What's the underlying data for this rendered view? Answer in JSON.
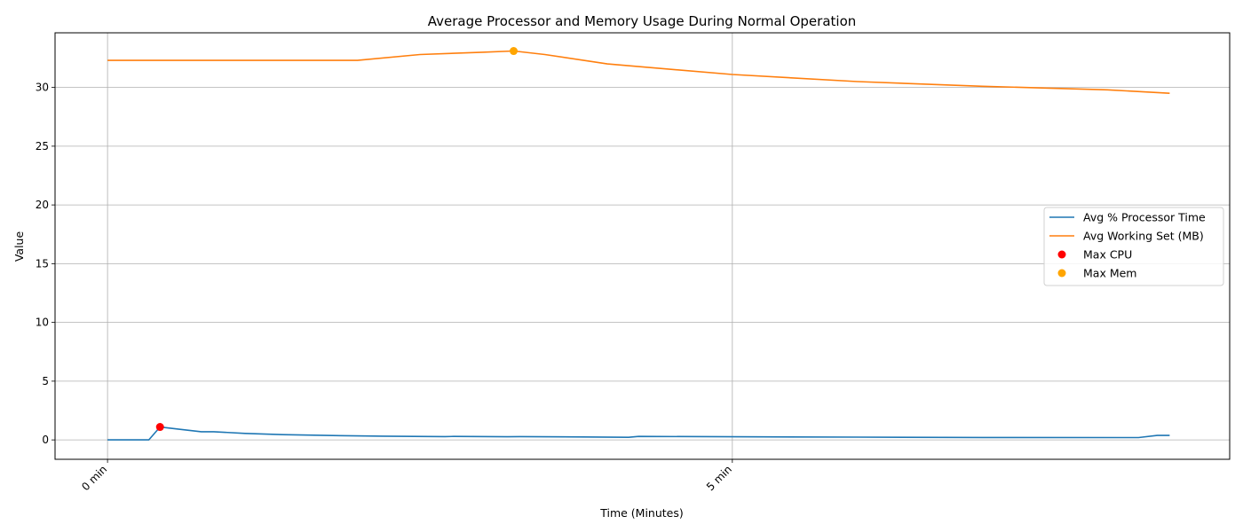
{
  "chart_data": {
    "type": "line",
    "title": "Average Processor and Memory Usage During Normal Operation",
    "xlabel": "Time (Minutes)",
    "ylabel": "Value",
    "xlim": [
      -0.42,
      8.98
    ],
    "ylim": [
      -1.65,
      34.65
    ],
    "x_ticks": [
      {
        "value": 0,
        "label": "0 min"
      },
      {
        "value": 5,
        "label": "5 min"
      }
    ],
    "y_ticks": [
      0,
      5,
      10,
      15,
      20,
      25,
      30
    ],
    "grid": true,
    "legend_position": "center-right",
    "series": [
      {
        "name": "Avg % Processor Time",
        "color": "#1f77b4",
        "x": [
          0,
          0.33,
          0.42,
          0.58,
          0.75,
          0.85,
          1.1,
          1.4,
          1.8,
          2.2,
          2.7,
          2.77,
          3.2,
          3.3,
          3.8,
          4.17,
          4.25,
          5.0,
          6.0,
          7.0,
          8.25,
          8.4,
          8.5
        ],
        "y": [
          0.0,
          0.0,
          1.1,
          0.9,
          0.7,
          0.7,
          0.55,
          0.45,
          0.37,
          0.32,
          0.28,
          0.3,
          0.27,
          0.28,
          0.25,
          0.22,
          0.3,
          0.27,
          0.24,
          0.21,
          0.2,
          0.38,
          0.38
        ]
      },
      {
        "name": "Avg Working Set (MB)",
        "color": "#ff7f0e",
        "x": [
          0,
          1.0,
          2.0,
          2.5,
          3.0,
          3.25,
          3.5,
          4.0,
          5.0,
          6.0,
          7.0,
          8.0,
          8.5
        ],
        "y": [
          32.3,
          32.3,
          32.3,
          32.8,
          33.0,
          33.1,
          32.8,
          32.0,
          31.1,
          30.5,
          30.1,
          29.8,
          29.5
        ]
      }
    ],
    "markers": [
      {
        "name": "Max CPU",
        "color": "#ff0000",
        "x": 0.42,
        "y": 1.1
      },
      {
        "name": "Max Mem",
        "color": "#ffa500",
        "x": 3.25,
        "y": 33.1
      }
    ]
  }
}
